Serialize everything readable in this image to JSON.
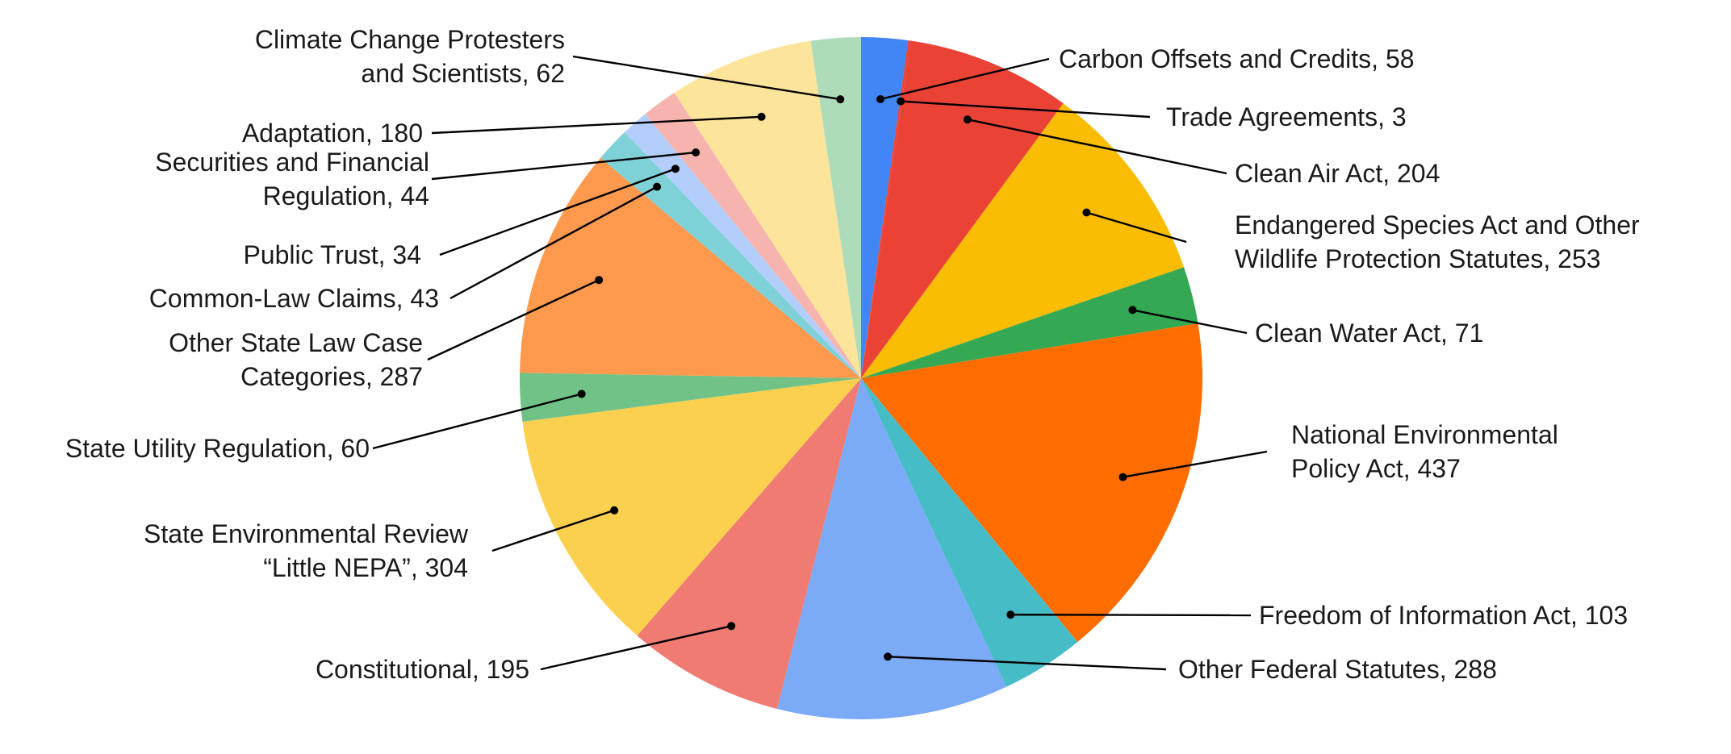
{
  "chart_data": {
    "type": "pie",
    "title": "",
    "start_angle_deg": 0,
    "direction": "clockwise",
    "slices": [
      {
        "label_lines": [
          "Carbon Offsets and Credits, 58"
        ],
        "value": 58,
        "color": "#4285f4"
      },
      {
        "label_lines": [
          "Trade Agreements, 3"
        ],
        "value": 3,
        "color": "#ea4335"
      },
      {
        "label_lines": [
          "Clean Air Act, 204"
        ],
        "value": 204,
        "color": "#ea4335"
      },
      {
        "label_lines": [
          "Endangered Species Act and Other",
          "Wildlife Protection Statutes, 253"
        ],
        "value": 253,
        "color": "#fbbc04"
      },
      {
        "label_lines": [
          "Clean Water Act, 71"
        ],
        "value": 71,
        "color": "#34a853"
      },
      {
        "label_lines": [
          "National Environmental",
          "Policy Act, 437"
        ],
        "value": 437,
        "color": "#ff6d01"
      },
      {
        "label_lines": [
          "Freedom of Information Act, 103"
        ],
        "value": 103,
        "color": "#46bdc6"
      },
      {
        "label_lines": [
          "Other Federal Statutes, 288"
        ],
        "value": 288,
        "color": "#7baaf7"
      },
      {
        "label_lines": [
          "Constitutional, 195"
        ],
        "value": 195,
        "color": "#f07b72"
      },
      {
        "label_lines": [
          "State Environmental Review",
          "“Little NEPA”, 304"
        ],
        "value": 304,
        "color": "#fcd04f"
      },
      {
        "label_lines": [
          "State Utility Regulation, 60"
        ],
        "value": 60,
        "color": "#71c287"
      },
      {
        "label_lines": [
          "Other State Law Case",
          "Categories, 287"
        ],
        "value": 287,
        "color": "#ff994d"
      },
      {
        "label_lines": [
          "Common-Law Claims, 43"
        ],
        "value": 43,
        "color": "#7ed1d7"
      },
      {
        "label_lines": [
          "Public Trust, 34"
        ],
        "value": 34,
        "color": "#b3cefb"
      },
      {
        "label_lines": [
          "Securities and Financial",
          "Regulation, 44"
        ],
        "value": 44,
        "color": "#f7b4ae"
      },
      {
        "label_lines": [
          "Adaptation, 180"
        ],
        "value": 180,
        "color": "#fde49b"
      },
      {
        "label_lines": [
          "Climate Change Protesters",
          "and Scientists, 62"
        ],
        "value": 62,
        "color": "#aedcba"
      }
    ]
  }
}
